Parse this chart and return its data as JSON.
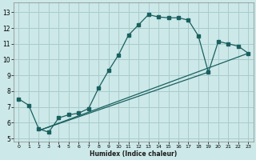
{
  "xlabel": "Humidex (Indice chaleur)",
  "bg_color": "#cce8e8",
  "grid_color": "#aacccc",
  "line_color": "#1a6060",
  "xlim": [
    -0.5,
    23.5
  ],
  "ylim": [
    4.8,
    13.6
  ],
  "xticks": [
    0,
    1,
    2,
    3,
    4,
    5,
    6,
    7,
    8,
    9,
    10,
    11,
    12,
    13,
    14,
    15,
    16,
    17,
    18,
    19,
    20,
    21,
    22,
    23
  ],
  "yticks": [
    5,
    6,
    7,
    8,
    9,
    10,
    11,
    12,
    13
  ],
  "main_x": [
    0,
    1,
    2,
    3,
    4,
    5,
    6,
    7,
    8,
    9,
    10,
    11,
    12,
    13,
    14,
    15,
    16,
    17,
    18,
    19,
    20,
    21,
    22,
    23
  ],
  "main_y": [
    7.5,
    7.1,
    5.6,
    5.4,
    6.3,
    6.5,
    6.6,
    6.9,
    8.2,
    9.3,
    10.3,
    11.55,
    12.2,
    12.85,
    12.7,
    12.65,
    12.65,
    12.5,
    11.5,
    9.2,
    11.15,
    11.0,
    10.85,
    10.4
  ],
  "line1_x": [
    2,
    23
  ],
  "line1_y": [
    5.5,
    10.4
  ],
  "line2_x": [
    2,
    19
  ],
  "line2_y": [
    5.5,
    9.2
  ]
}
